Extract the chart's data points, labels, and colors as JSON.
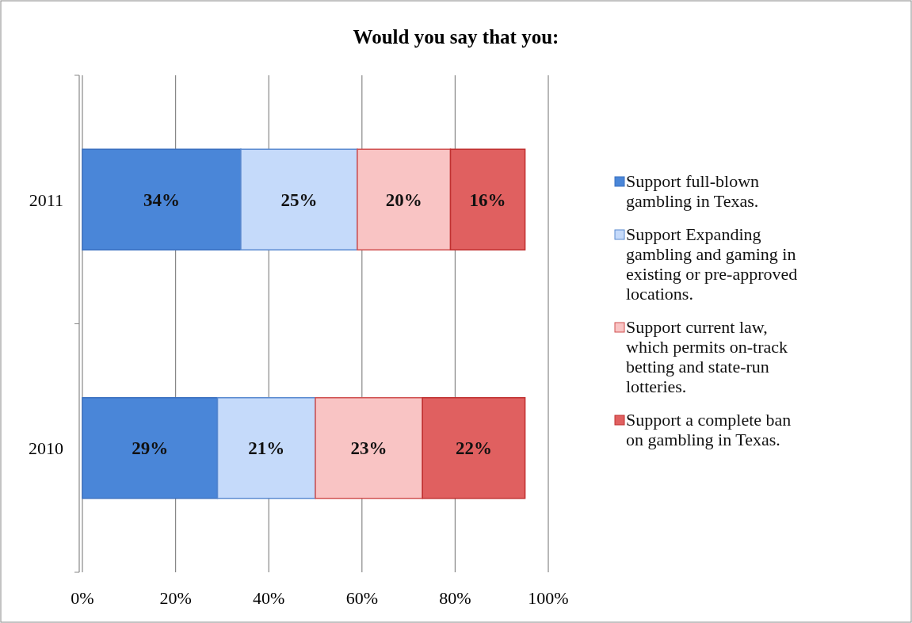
{
  "chart_data": {
    "type": "bar",
    "orientation": "horizontal",
    "stacked": true,
    "title": "Would you say that you:",
    "categories": [
      "2011",
      "2010"
    ],
    "series": [
      {
        "name": "Support full-blown gambling in Texas.",
        "color": "#4a86d8",
        "values": [
          34,
          29
        ],
        "value_labels": [
          "34%",
          "29%"
        ]
      },
      {
        "name": "Support Expanding gambling and gaming in existing or pre-approved locations.",
        "color": "#c5dafa",
        "values": [
          25,
          21
        ],
        "value_labels": [
          "25%",
          "21%"
        ]
      },
      {
        "name": "Support current law, which permits on-track betting and state-run lotteries.",
        "color": "#f9c4c4",
        "values": [
          20,
          23
        ],
        "value_labels": [
          "20%",
          "23%"
        ]
      },
      {
        "name": "Support a complete ban on gambling in Texas.",
        "color": "#e06060",
        "values": [
          16,
          22
        ],
        "value_labels": [
          "16%",
          "22%"
        ]
      }
    ],
    "xlim": [
      0,
      100
    ],
    "xticks": [
      {
        "value": 0,
        "label": "0%"
      },
      {
        "value": 20,
        "label": "20%"
      },
      {
        "value": 40,
        "label": "40%"
      },
      {
        "value": 60,
        "label": "60%"
      },
      {
        "value": 80,
        "label": "80%"
      },
      {
        "value": 100,
        "label": "100%"
      }
    ],
    "grid": "x",
    "legend": "right"
  }
}
